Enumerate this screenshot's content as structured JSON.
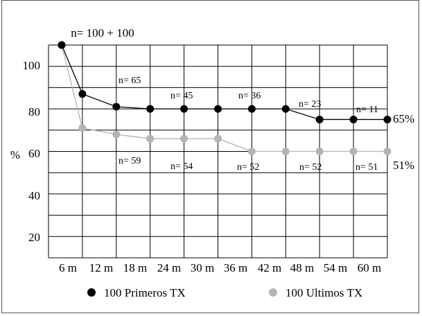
{
  "chart_data": {
    "type": "line",
    "title": "n= 100 + 100",
    "xlabel": "",
    "ylabel": "%",
    "categories": [
      "6 m",
      "12 m",
      "18 m",
      "24 m",
      "30 m",
      "36 m",
      "42 m",
      "48 m",
      "54 m",
      "60 m"
    ],
    "yticks": [
      "100",
      "80",
      "60",
      "40",
      "20"
    ],
    "ylim": [
      10,
      110
    ],
    "grid": true,
    "legend_position": "bottom",
    "series": [
      {
        "name": "100 Primeros TX",
        "color": "#000000",
        "x": [
          0,
          1,
          2,
          3,
          4,
          5,
          6,
          7,
          8,
          9,
          10
        ],
        "y": [
          110,
          87,
          81,
          80,
          80,
          80,
          80,
          80,
          75,
          75,
          75
        ],
        "end_label": "65%",
        "n_labels": [
          "n= 65",
          "n= 45",
          "n= 36",
          "n= 23",
          "n= 11"
        ]
      },
      {
        "name": "100 Ultimos TX",
        "color": "#b4b4b4",
        "x": [
          0,
          1,
          2,
          3,
          4,
          5,
          6,
          7,
          8,
          9,
          10
        ],
        "y": [
          110,
          71,
          68,
          66,
          66,
          66,
          60,
          60,
          60,
          60,
          60
        ],
        "end_label": "51%",
        "n_labels": [
          "n= 59",
          "n= 54",
          "n= 52",
          "n= 52",
          "n= 51"
        ]
      }
    ]
  }
}
